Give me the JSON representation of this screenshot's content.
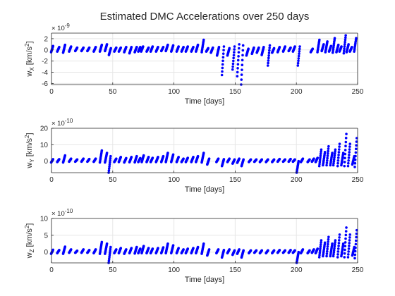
{
  "figure": {
    "title": "Estimated DMC Accelerations over 250 days"
  },
  "colors": {
    "marker": "#0000ff",
    "grid": "#e6e6e6",
    "axis": "#262626",
    "background": "#ffffff"
  },
  "chart_data": [
    {
      "type": "scatter",
      "id": "wx",
      "ylabel": "w_X [km/s^2]",
      "ylabel_main": "w",
      "ylabel_sub": "X",
      "ylabel_unit_pre": " [km/s",
      "ylabel_unit_sup": "2",
      "ylabel_unit_post": "]",
      "xlabel": "Time [days]",
      "xlim": [
        0,
        250
      ],
      "ylim": [
        -6.2,
        3.0
      ],
      "exponent_base": "× 10",
      "exponent": "-9",
      "xticks": [
        0,
        50,
        100,
        150,
        200,
        250
      ],
      "yticks": [
        -6,
        -4,
        -2,
        0,
        2
      ],
      "grid": true,
      "series": [
        {
          "arcs": [
            [
              0.5,
              -0.4,
              0.7
            ],
            [
              5.5,
              -0.3,
              0.5
            ],
            [
              10.3,
              -0.5,
              0.9
            ],
            [
              15.2,
              -0.3,
              0.6
            ],
            [
              20.2,
              -0.2,
              0.4
            ],
            [
              25.3,
              -0.2,
              0.4
            ],
            [
              30.1,
              -0.2,
              0.4
            ],
            [
              35.3,
              -0.3,
              0.5
            ],
            [
              40.3,
              -0.3,
              0.9
            ],
            [
              44.5,
              -0.2,
              1.0
            ],
            [
              47.7,
              -0.9,
              0.3
            ],
            [
              52.1,
              -0.3,
              0.4
            ],
            [
              55.8,
              -0.3,
              0.4
            ],
            [
              60.2,
              -0.4,
              0.5
            ],
            [
              64.5,
              -0.6,
              0.5
            ],
            [
              68.8,
              -0.4,
              0.5
            ],
            [
              71.7,
              -0.3,
              0.5
            ],
            [
              74.0,
              -0.3,
              0.6
            ],
            [
              78.5,
              -0.3,
              0.4
            ],
            [
              81.8,
              -0.3,
              0.6
            ],
            [
              86.2,
              -0.3,
              0.5
            ],
            [
              90.5,
              -0.2,
              0.5
            ],
            [
              94.2,
              -0.2,
              0.9
            ],
            [
              98.6,
              -0.3,
              0.8
            ],
            [
              103.0,
              -0.3,
              0.6
            ],
            [
              107.0,
              -0.3,
              0.5
            ],
            [
              110.5,
              -0.3,
              0.6
            ],
            [
              115.0,
              -0.3,
              0.5
            ],
            [
              118.8,
              -0.3,
              0.9
            ],
            [
              123.5,
              -0.4,
              1.8
            ],
            [
              127.2,
              -0.3,
              0.3
            ],
            [
              131.0,
              -0.5,
              0.4
            ],
            [
              136.0,
              -1.0,
              0.5
            ],
            [
              140.0,
              -4.5,
              0.6
            ],
            [
              144.5,
              -1.0,
              0.3
            ],
            [
              148.7,
              -3.5,
              0.6
            ],
            [
              152.5,
              -4.7,
              1.0
            ],
            [
              155.7,
              -6.2,
              0.8
            ],
            [
              160.0,
              -1.0,
              0.2
            ],
            [
              164.5,
              -0.7,
              0.4
            ],
            [
              168.5,
              -0.5,
              0.4
            ],
            [
              172.5,
              -0.9,
              0.5
            ],
            [
              177.5,
              -2.8,
              0.8
            ],
            [
              181.0,
              -0.5,
              0.3
            ],
            [
              185.5,
              -0.4,
              0.5
            ],
            [
              190.0,
              -0.3,
              0.6
            ],
            [
              194.5,
              -0.2,
              0.4
            ],
            [
              198.0,
              -0.3,
              0.6
            ],
            [
              202.0,
              -2.8,
              0.6
            ],
            [
              212.5,
              -0.4,
              0.2
            ],
            [
              218.0,
              -0.4,
              1.8
            ],
            [
              221.5,
              -0.2,
              1.0
            ],
            [
              224.5,
              -0.4,
              1.5
            ],
            [
              227.5,
              -0.3,
              0.7
            ],
            [
              230.5,
              -0.5,
              2.1
            ],
            [
              233.5,
              -0.4,
              0.9
            ],
            [
              236.0,
              -0.3,
              0.6
            ],
            [
              239.5,
              -0.6,
              2.6
            ],
            [
              241.8,
              -0.4,
              1.0
            ],
            [
              244.5,
              -0.3,
              0.5
            ],
            [
              248.0,
              -0.3,
              2.1
            ]
          ]
        }
      ]
    },
    {
      "type": "scatter",
      "id": "wy",
      "ylabel": "w_Y [km/s^2]",
      "ylabel_main": "w",
      "ylabel_sub": "Y",
      "ylabel_unit_pre": " [km/s",
      "ylabel_unit_sup": "2",
      "ylabel_unit_post": "]",
      "xlabel": "Time [days]",
      "xlim": [
        0,
        250
      ],
      "ylim": [
        -7,
        20
      ],
      "exponent_base": "× 10",
      "exponent": "-10",
      "xticks": [
        0,
        50,
        100,
        150,
        200,
        250
      ],
      "yticks": [
        0,
        10,
        20
      ],
      "grid": true,
      "series": [
        {
          "arcs": [
            [
              0.5,
              -0.8,
              1.2
            ],
            [
              5.5,
              -0.5,
              1.2
            ],
            [
              10.3,
              -0.8,
              3.5
            ],
            [
              15.2,
              -0.3,
              1.5
            ],
            [
              20.2,
              -0.3,
              1.0
            ],
            [
              25.3,
              -0.3,
              1.5
            ],
            [
              30.1,
              -0.3,
              1.3
            ],
            [
              35.3,
              -0.4,
              1.5
            ],
            [
              40.3,
              -0.8,
              6.5
            ],
            [
              44.5,
              -0.8,
              5.0
            ],
            [
              47.5,
              -7.0,
              3.0
            ],
            [
              52.1,
              -0.5,
              1.5
            ],
            [
              55.8,
              -0.5,
              2.5
            ],
            [
              60.2,
              -0.8,
              1.8
            ],
            [
              64.5,
              -0.6,
              2.5
            ],
            [
              68.8,
              -0.7,
              3.0
            ],
            [
              71.7,
              -0.5,
              1.8
            ],
            [
              74.5,
              -0.5,
              3.5
            ],
            [
              78.5,
              -0.5,
              2.5
            ],
            [
              81.8,
              -0.5,
              2.0
            ],
            [
              86.2,
              -0.5,
              2.5
            ],
            [
              90.5,
              -0.5,
              3.0
            ],
            [
              94.2,
              -0.5,
              5.0
            ],
            [
              98.6,
              -0.5,
              4.0
            ],
            [
              103.0,
              -0.5,
              2.5
            ],
            [
              107.0,
              -0.5,
              1.5
            ],
            [
              110.5,
              -0.5,
              2.0
            ],
            [
              115.0,
              -0.5,
              2.5
            ],
            [
              118.8,
              -0.5,
              3.0
            ],
            [
              123.5,
              -0.8,
              5.0
            ],
            [
              128.0,
              -2.0,
              1.5
            ],
            [
              135.5,
              -0.5,
              1.5
            ],
            [
              140.0,
              -3.0,
              1.2
            ],
            [
              144.5,
              -0.5,
              1.5
            ],
            [
              148.7,
              -1.5,
              1.0
            ],
            [
              152.5,
              -1.0,
              1.5
            ],
            [
              156.0,
              -3.0,
              1.0
            ],
            [
              162.0,
              -0.5,
              1.0
            ],
            [
              166.5,
              -0.4,
              1.0
            ],
            [
              171.0,
              -0.5,
              1.0
            ],
            [
              176.0,
              -0.5,
              1.0
            ],
            [
              181.0,
              -0.5,
              1.0
            ],
            [
              185.5,
              -0.3,
              1.3
            ],
            [
              190.0,
              -0.3,
              1.0
            ],
            [
              194.5,
              -0.3,
              1.3
            ],
            [
              198.0,
              -0.3,
              1.0
            ],
            [
              201.0,
              -7.0,
              0.0
            ],
            [
              204.5,
              -0.5,
              1.5
            ],
            [
              210.0,
              -0.5,
              1.0
            ],
            [
              213.5,
              -0.3,
              1.5
            ],
            [
              216.5,
              -0.5,
              2.0
            ],
            [
              219.5,
              -3.0,
              7.0
            ],
            [
              222.5,
              -2.5,
              5.5
            ],
            [
              225.5,
              -2.5,
              9.0
            ],
            [
              228.5,
              -2.5,
              5.0
            ],
            [
              231.0,
              -2.5,
              7.0
            ],
            [
              234.5,
              -3.0,
              10.5
            ],
            [
              237.5,
              -2.5,
              5.0
            ],
            [
              240.0,
              -3.0,
              16.5
            ],
            [
              243.0,
              -3.0,
              10.5
            ],
            [
              246.5,
              -2.0,
              3.0
            ],
            [
              248.5,
              -3.5,
              14.0
            ]
          ]
        }
      ]
    },
    {
      "type": "scatter",
      "id": "wz",
      "ylabel": "w_Z [km/s^2]",
      "ylabel_main": "w",
      "ylabel_sub": "Z",
      "ylabel_unit_pre": " [km/s",
      "ylabel_unit_sup": "2",
      "ylabel_unit_post": "]",
      "xlabel": "Time [days]",
      "xlim": [
        0,
        250
      ],
      "ylim": [
        -3.2,
        10
      ],
      "exponent_base": "× 10",
      "exponent": "-10",
      "xticks": [
        0,
        50,
        100,
        150,
        200,
        250
      ],
      "yticks": [
        0,
        5,
        10
      ],
      "grid": true,
      "series": [
        {
          "arcs": [
            [
              0.5,
              -0.5,
              0.7
            ],
            [
              5.5,
              -0.3,
              0.6
            ],
            [
              10.3,
              -0.5,
              1.6
            ],
            [
              15.2,
              -0.2,
              0.8
            ],
            [
              20.2,
              -0.2,
              0.4
            ],
            [
              25.3,
              -0.2,
              0.8
            ],
            [
              30.1,
              -0.2,
              0.6
            ],
            [
              35.3,
              -0.3,
              0.8
            ],
            [
              40.3,
              -0.5,
              3.0
            ],
            [
              44.5,
              -0.5,
              2.5
            ],
            [
              47.5,
              -3.2,
              1.5
            ],
            [
              52.1,
              -0.3,
              0.8
            ],
            [
              55.8,
              -0.3,
              1.2
            ],
            [
              60.2,
              -0.5,
              0.8
            ],
            [
              64.5,
              -0.3,
              1.2
            ],
            [
              68.8,
              -0.4,
              1.5
            ],
            [
              71.7,
              -0.3,
              1.0
            ],
            [
              74.5,
              -0.3,
              1.8
            ],
            [
              78.5,
              -0.3,
              1.2
            ],
            [
              81.8,
              -0.3,
              1.0
            ],
            [
              86.2,
              -0.3,
              1.2
            ],
            [
              90.5,
              -0.3,
              1.4
            ],
            [
              94.2,
              -0.3,
              2.5
            ],
            [
              98.6,
              -0.3,
              2.0
            ],
            [
              103.0,
              -0.3,
              1.2
            ],
            [
              107.0,
              -0.3,
              0.8
            ],
            [
              110.5,
              -0.3,
              1.0
            ],
            [
              115.0,
              -0.3,
              1.2
            ],
            [
              118.8,
              -0.3,
              1.5
            ],
            [
              123.5,
              -0.5,
              2.5
            ],
            [
              128.0,
              -1.0,
              0.8
            ],
            [
              135.5,
              -0.3,
              0.8
            ],
            [
              140.0,
              -1.6,
              0.6
            ],
            [
              144.5,
              -0.3,
              0.8
            ],
            [
              148.7,
              -0.8,
              0.5
            ],
            [
              152.5,
              -0.5,
              0.8
            ],
            [
              156.0,
              -1.6,
              0.5
            ],
            [
              162.0,
              -0.3,
              0.5
            ],
            [
              166.5,
              -0.2,
              0.5
            ],
            [
              171.0,
              -0.3,
              0.5
            ],
            [
              176.0,
              -0.3,
              0.5
            ],
            [
              181.0,
              -0.3,
              0.5
            ],
            [
              185.5,
              -0.2,
              0.6
            ],
            [
              190.0,
              -0.2,
              0.5
            ],
            [
              194.5,
              -0.2,
              0.6
            ],
            [
              198.0,
              -0.2,
              0.5
            ],
            [
              201.0,
              -3.2,
              0.0
            ],
            [
              204.5,
              -0.3,
              0.8
            ],
            [
              210.0,
              -0.3,
              0.5
            ],
            [
              213.5,
              -0.2,
              0.8
            ],
            [
              216.5,
              -0.3,
              1.0
            ],
            [
              219.5,
              -1.5,
              3.5
            ],
            [
              222.5,
              -1.2,
              2.8
            ],
            [
              225.5,
              -1.2,
              4.5
            ],
            [
              228.5,
              -1.2,
              2.5
            ],
            [
              231.0,
              -1.2,
              3.5
            ],
            [
              234.5,
              -1.5,
              5.2
            ],
            [
              237.5,
              -1.2,
              2.5
            ],
            [
              240.0,
              -1.5,
              7.3
            ],
            [
              243.0,
              -1.5,
              5.2
            ],
            [
              246.5,
              -1.0,
              1.5
            ],
            [
              248.5,
              -1.8,
              6.5
            ]
          ]
        }
      ]
    }
  ]
}
